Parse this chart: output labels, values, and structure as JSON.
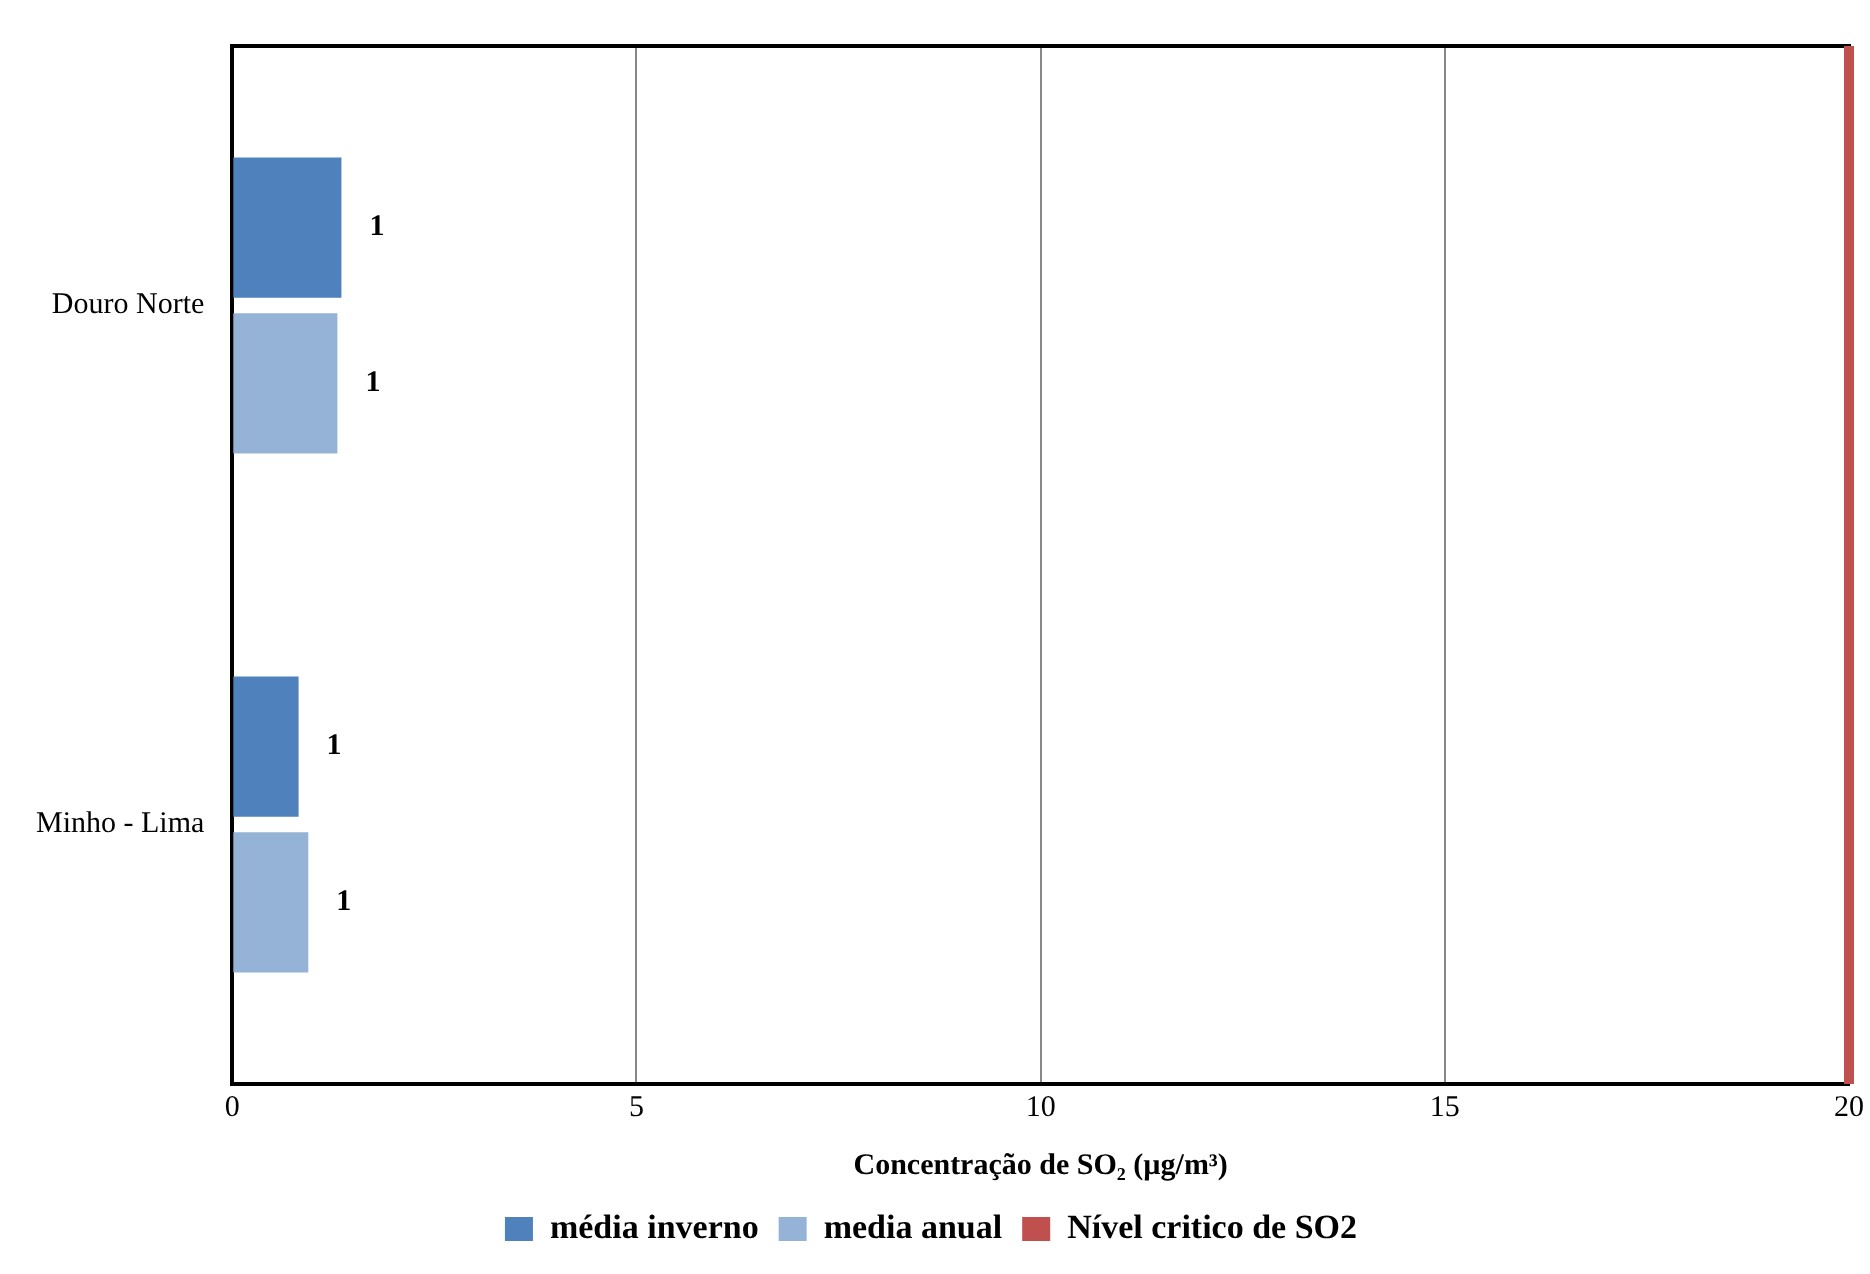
{
  "chart_data": {
    "type": "bar",
    "orientation": "horizontal",
    "xlabel": "Concentração de SO₂ (µg/m³)",
    "categories": [
      "Douro Norte",
      "Minho - Lima"
    ],
    "series": [
      {
        "name": "média inverno",
        "color": "#4f81bd",
        "values": [
          1.35,
          0.82
        ],
        "value_labels": [
          "1",
          "1"
        ]
      },
      {
        "name": "media anual",
        "color": "#95b3d7",
        "values": [
          1.3,
          0.94
        ],
        "value_labels": [
          "1",
          "1"
        ]
      }
    ],
    "xlim": [
      0,
      20
    ],
    "xticks": [
      0,
      5,
      10,
      15,
      20
    ],
    "grid": "x",
    "legend": "bottom",
    "ref_lines": [
      {
        "axis": "x",
        "value": 20,
        "label": "Nível critico de SO2",
        "color": "#c0504d"
      }
    ]
  }
}
